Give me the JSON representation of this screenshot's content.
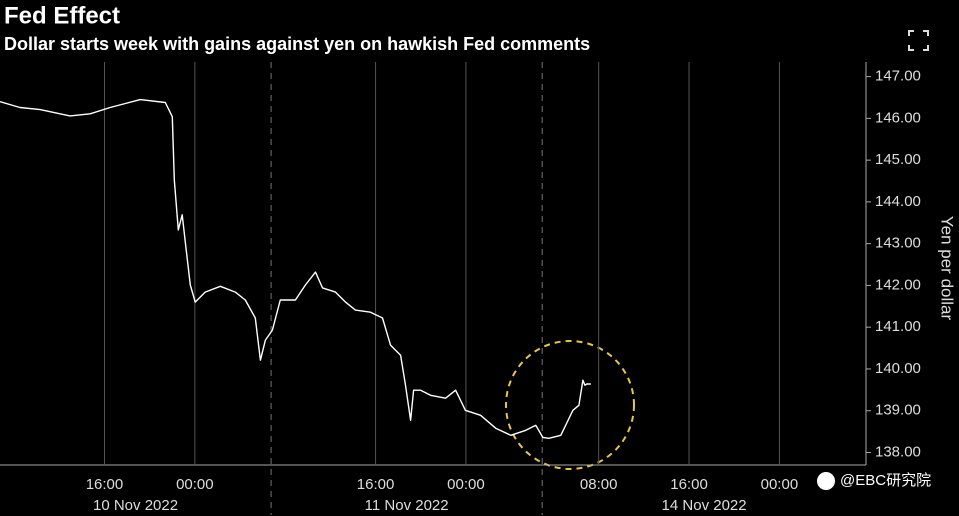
{
  "chart_data": {
    "type": "line",
    "title": "Fed Effect",
    "subtitle": "Dollar starts week with gains against yen on hawkish Fed comments",
    "y_label": "Yen per dollar",
    "color": "#ffffff",
    "watermark": "@EBC研究院",
    "x": [
      "2022-11-10 06:45",
      "2022-11-10 08:31",
      "2022-11-10 10:18",
      "2022-11-10 12:57",
      "2022-11-10 14:44",
      "2022-11-10 16:30",
      "2022-11-10 19:10",
      "2022-11-10 21:23",
      "2022-11-10 22:00",
      "2022-11-10 22:11",
      "2022-11-10 22:32",
      "2022-11-10 22:53",
      "2022-11-10 23:14",
      "2022-11-10 23:36",
      "2022-11-11 00:02",
      "2022-11-11 00:55",
      "2022-11-11 02:15",
      "2022-11-11 03:35",
      "2022-11-11 04:28",
      "2022-11-11 05:21",
      "2022-11-11 05:48",
      "2022-11-11 06:15",
      "2022-11-11 06:52",
      "2022-11-11 07:34",
      "2022-11-11 08:54",
      "2022-11-11 09:47",
      "2022-11-11 10:41",
      "2022-11-11 11:18",
      "2022-11-11 12:27",
      "2022-11-11 13:20",
      "2022-11-11 14:13",
      "2022-11-11 15:33",
      "2022-11-11 16:37",
      "2022-11-11 17:19",
      "2022-11-11 18:13",
      "2022-11-11 18:39",
      "2022-11-11 19:06",
      "2022-11-11 19:22",
      "2022-11-11 19:59",
      "2022-11-11 20:52",
      "2022-11-11 22:12",
      "2022-11-11 23:05",
      "2022-11-11 23:57",
      "2022-11-12 01:18",
      "2022-11-12 02:38",
      "2022-11-12 03:58",
      "2022-11-12 05:18",
      "2022-11-12 06:11",
      "2022-11-14 03:03",
      "2022-11-14 03:35",
      "2022-11-14 04:39",
      "2022-11-14 05:43",
      "2022-11-14 06:15",
      "2022-11-14 06:36",
      "2022-11-14 06:47",
      "2022-11-14 06:57",
      "2022-11-14 07:18"
    ],
    "values": [
      146.4,
      146.26,
      146.21,
      146.06,
      146.11,
      146.26,
      146.45,
      146.38,
      146.04,
      144.53,
      143.33,
      143.69,
      142.85,
      142.01,
      141.6,
      141.84,
      141.98,
      141.84,
      141.65,
      141.22,
      140.21,
      140.69,
      140.93,
      141.65,
      141.65,
      142.01,
      142.32,
      141.94,
      141.84,
      141.6,
      141.41,
      141.36,
      141.22,
      140.57,
      140.33,
      139.61,
      138.77,
      139.49,
      139.49,
      139.37,
      139.3,
      139.49,
      139.01,
      138.89,
      138.58,
      138.41,
      138.53,
      138.65,
      138.36,
      138.34,
      138.41,
      139.01,
      139.13,
      139.73,
      139.61,
      139.64,
      139.64
    ],
    "xlim": [
      "2022-11-10 06:45",
      "2022-11-15 07:40"
    ],
    "sessions": [
      {
        "label": "10 Nov 2022",
        "start": "2022-11-10 06:45"
      },
      {
        "label": "11 Nov 2022",
        "start": "2022-11-11 06:45",
        "end": "2022-11-12 06:45"
      },
      {
        "label": "14 Nov 2022",
        "start": "2022-11-14 03:00"
      }
    ],
    "xticks": [
      {
        "value": "2022-11-10 16:00",
        "label": "16:00"
      },
      {
        "value": "2022-11-11 00:00",
        "label": "00:00"
      },
      {
        "value": "2022-11-11 16:00",
        "label": "16:00"
      },
      {
        "value": "2022-11-12 00:00",
        "label": "00:00"
      },
      {
        "value": "2022-11-14 08:00",
        "label": "08:00"
      },
      {
        "value": "2022-11-14 16:00",
        "label": "16:00"
      },
      {
        "value": "2022-11-15 00:00",
        "label": "00:00"
      }
    ],
    "ylim": [
      137.7,
      147.35
    ],
    "yticks": [
      {
        "value": 138,
        "label": "138.00"
      },
      {
        "value": 139,
        "label": "139.00"
      },
      {
        "value": 140,
        "label": "140.00"
      },
      {
        "value": 141,
        "label": "141.00"
      },
      {
        "value": 142,
        "label": "142.00"
      },
      {
        "value": 143,
        "label": "143.00"
      },
      {
        "value": 144,
        "label": "144.00"
      },
      {
        "value": 145,
        "label": "145.00"
      },
      {
        "value": 146,
        "label": "146.00"
      },
      {
        "value": 147,
        "label": "147.00"
      }
    ],
    "grid": true
  }
}
